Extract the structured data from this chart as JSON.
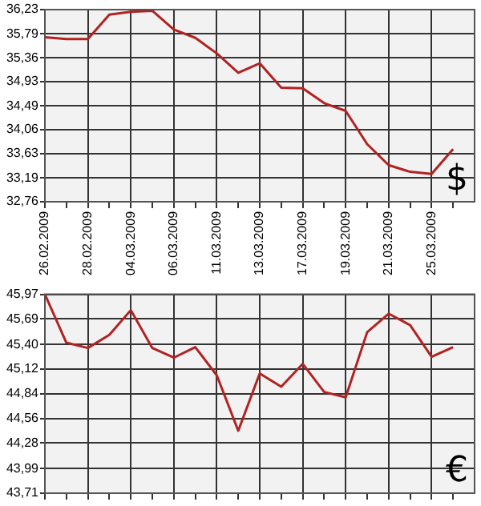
{
  "chart_data": [
    {
      "type": "line",
      "categories": [
        "26.02.2009",
        null,
        "28.02.2009",
        null,
        "04.03.2009",
        null,
        "06.03.2009",
        null,
        "11.03.2009",
        null,
        "13.03.2009",
        null,
        "17.03.2009",
        null,
        "19.03.2009",
        null,
        "21.03.2009",
        null,
        "25.03.2009",
        null
      ],
      "series": [
        {
          "color": "#b22222",
          "values": [
            35.73,
            35.7,
            35.7,
            36.14,
            36.19,
            36.21,
            35.87,
            35.72,
            35.44,
            35.09,
            35.26,
            34.82,
            34.81,
            34.54,
            34.4,
            33.8,
            33.42,
            33.3,
            33.26,
            33.71
          ]
        }
      ],
      "ylim": [
        32.76,
        36.23
      ],
      "yticks": [
        {
          "value": 32.76,
          "label": "32,76"
        },
        {
          "value": 33.19,
          "label": "33,19"
        },
        {
          "value": 33.63,
          "label": "33,63"
        },
        {
          "value": 34.06,
          "label": "34,06"
        },
        {
          "value": 34.49,
          "label": "34,49"
        },
        {
          "value": 34.93,
          "label": "34,93"
        },
        {
          "value": 35.36,
          "label": "35,36"
        },
        {
          "value": 35.79,
          "label": "35,79"
        },
        {
          "value": 36.23,
          "label": "36,23"
        }
      ],
      "grid": true,
      "legend": false,
      "marker": "none",
      "line_style": "solid",
      "annotations": [
        "$"
      ]
    },
    {
      "type": "line",
      "categories": [
        "26.02.2009",
        null,
        "28.02.2009",
        null,
        "04.03.2009",
        null,
        "06.03.2009",
        null,
        "11.03.2009",
        null,
        "13.03.2009",
        null,
        "17.03.2009",
        null,
        "19.03.2009",
        null,
        "21.03.2009",
        null,
        "25.03.2009",
        null
      ],
      "series": [
        {
          "color": "#b22222",
          "values": [
            45.97,
            45.42,
            45.36,
            45.51,
            45.79,
            45.36,
            45.25,
            45.37,
            45.05,
            44.42,
            45.07,
            44.92,
            45.18,
            44.86,
            44.8,
            45.54,
            45.75,
            45.62,
            45.26,
            45.37
          ]
        }
      ],
      "ylim": [
        43.71,
        45.97
      ],
      "yticks": [
        {
          "value": 43.71,
          "label": "43,71"
        },
        {
          "value": 43.99,
          "label": "43,99"
        },
        {
          "value": 44.28,
          "label": "44,28"
        },
        {
          "value": 44.56,
          "label": "44,56"
        },
        {
          "value": 44.84,
          "label": "44,84"
        },
        {
          "value": 45.12,
          "label": "45,12"
        },
        {
          "value": 45.4,
          "label": "45,40"
        },
        {
          "value": 45.69,
          "label": "45,69"
        },
        {
          "value": 45.97,
          "label": "45,97"
        }
      ],
      "grid": true,
      "legend": false,
      "marker": "none",
      "line_style": "solid",
      "tick_labels": "y",
      "annotations": [
        "€"
      ]
    }
  ]
}
